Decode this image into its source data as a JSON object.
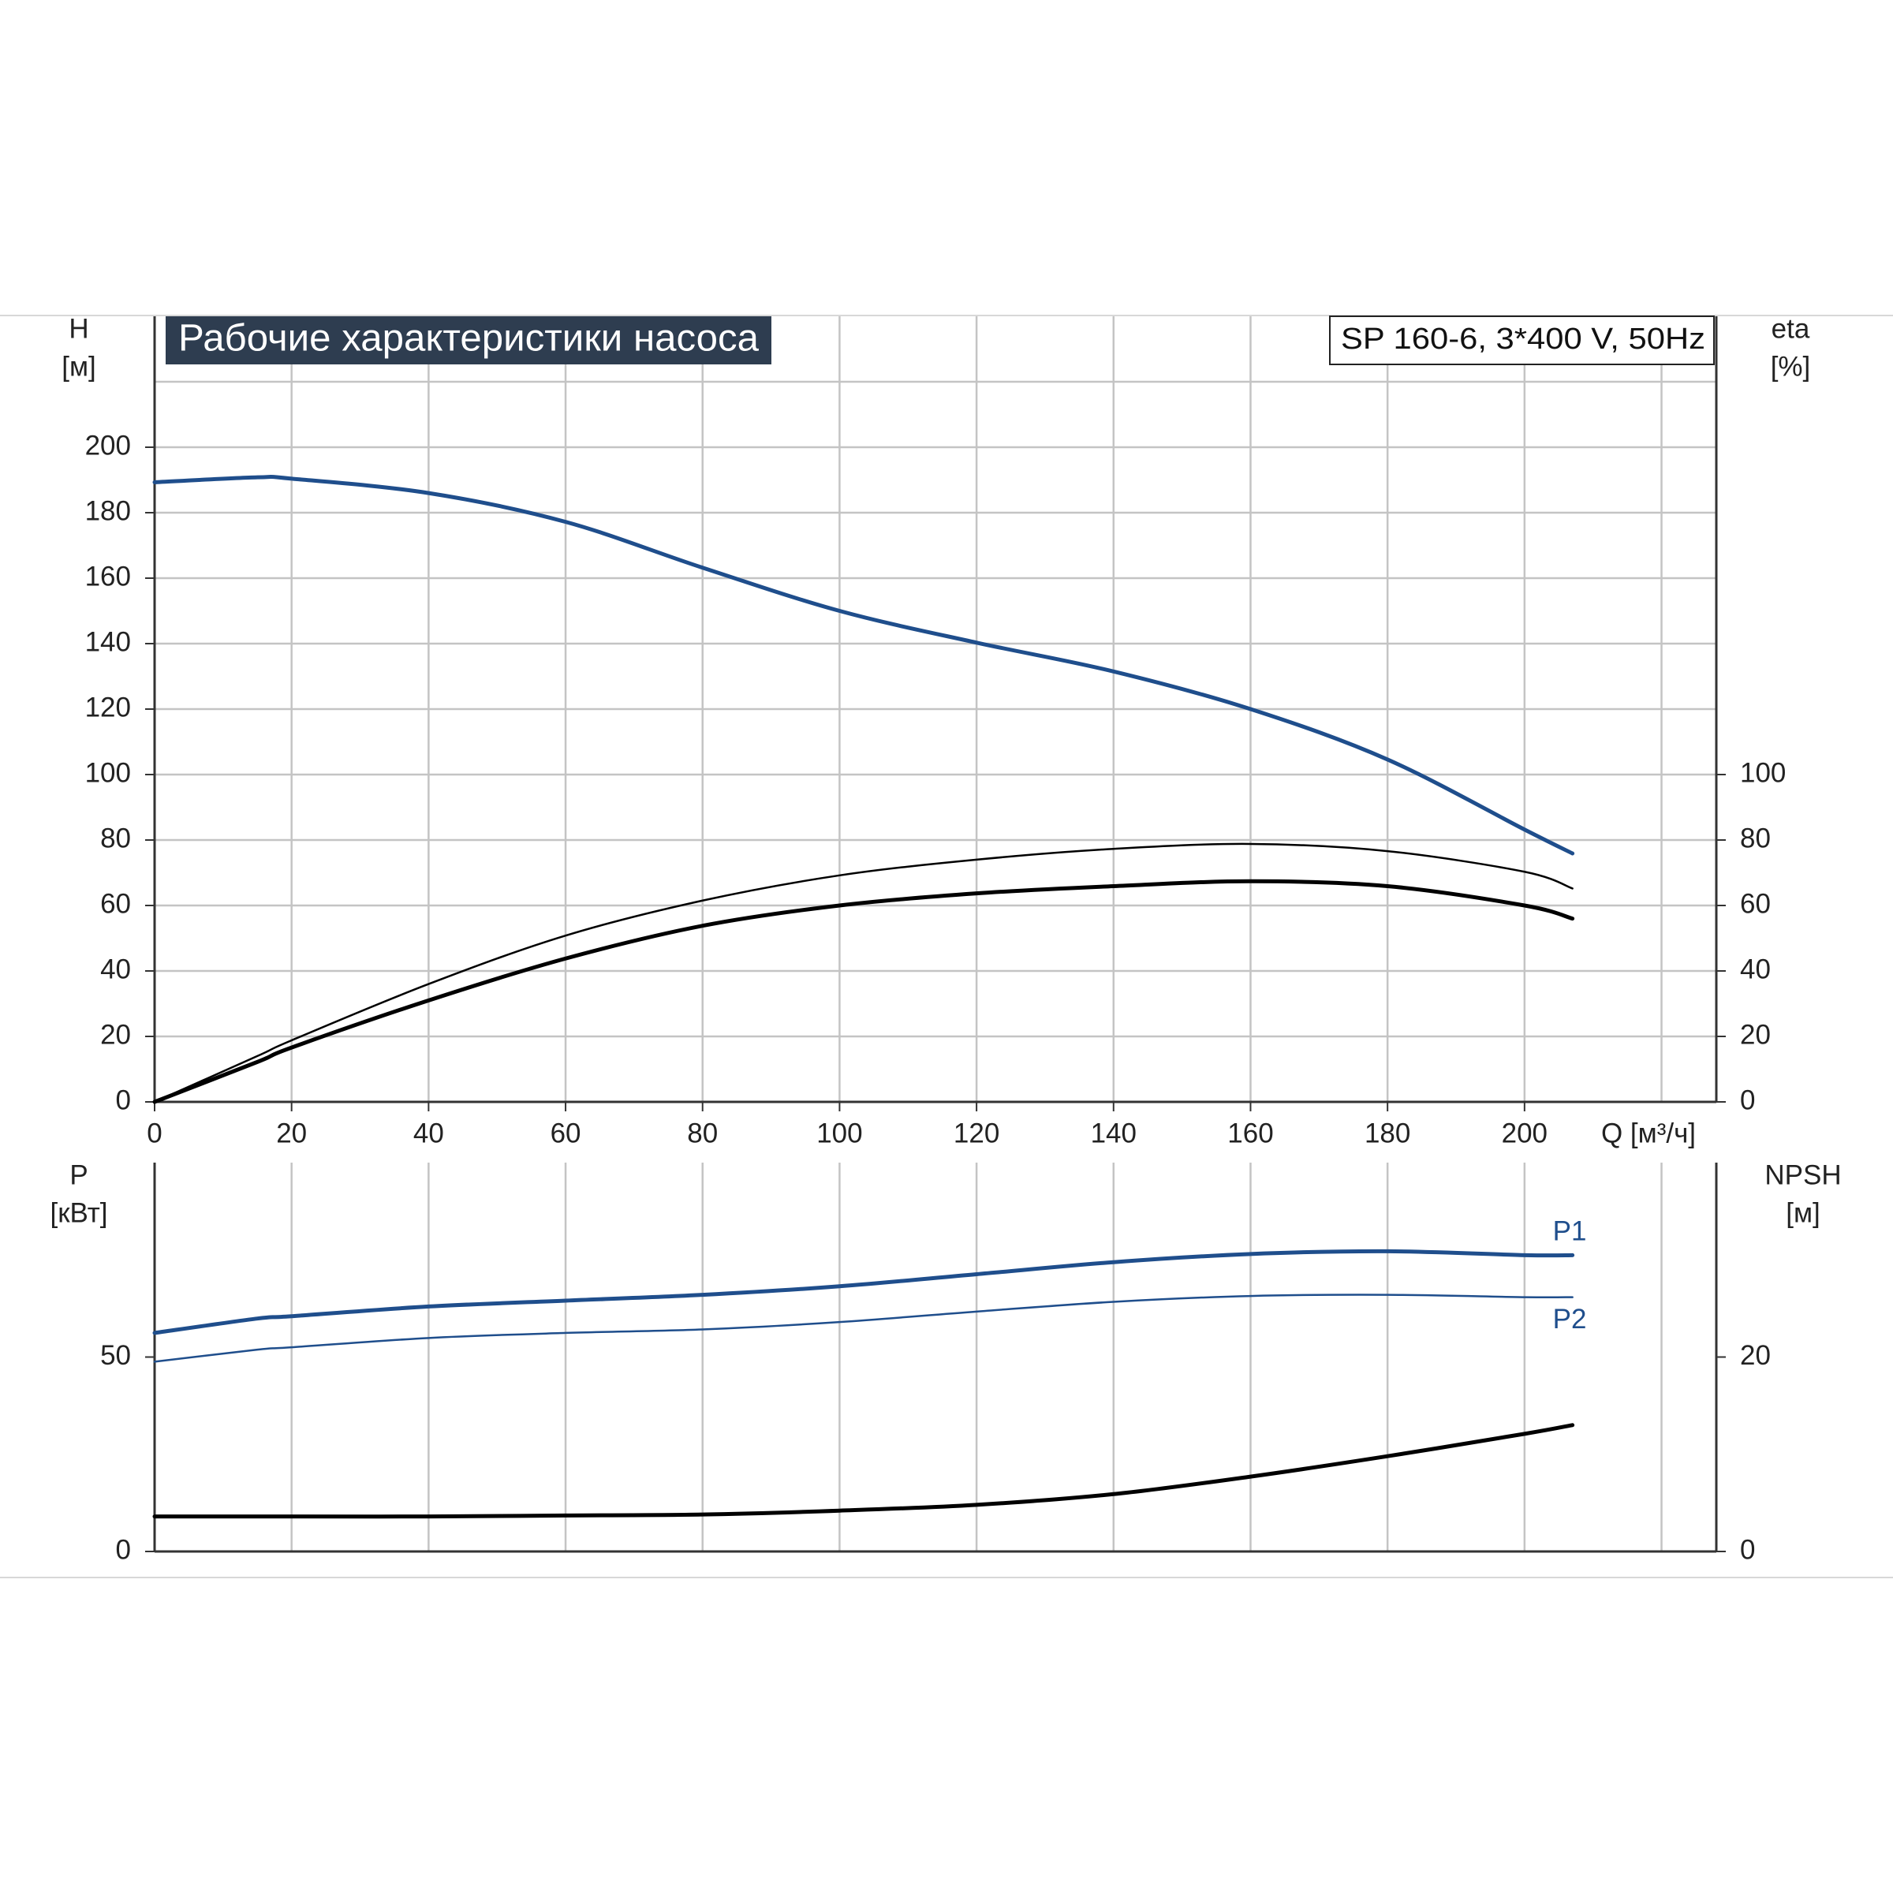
{
  "chart_data": [
    {
      "type": "line",
      "title": "Рабочие характеристики насоса",
      "subtitle": "SP 160-6, 3*400 V, 50Hz",
      "xlabel": "Q [м³/ч]",
      "ylabel": "H",
      "ylabel_unit": "[м]",
      "y2label": "eta",
      "y2label_unit": "[%]",
      "x": [
        0,
        15,
        20,
        40,
        60,
        80,
        100,
        120,
        140,
        160,
        180,
        200,
        207
      ],
      "xlim": [
        0,
        228
      ],
      "xticks": [
        0,
        20,
        40,
        60,
        80,
        100,
        120,
        140,
        160,
        180,
        200
      ],
      "xgrid": [
        20,
        40,
        60,
        80,
        100,
        120,
        140,
        160,
        180,
        200,
        220
      ],
      "ylim": [
        0,
        240
      ],
      "yticks": [
        0,
        20,
        40,
        60,
        80,
        100,
        120,
        140,
        160,
        180,
        200
      ],
      "ygrid": [
        20,
        40,
        60,
        80,
        100,
        120,
        140,
        160,
        180,
        200,
        220
      ],
      "y2lim": [
        0,
        240
      ],
      "y2ticks": [
        0,
        20,
        40,
        60,
        80,
        100
      ],
      "grid": true,
      "series": [
        {
          "color": "#1f4e8c",
          "style": "thick",
          "values": [
            189.3,
            190.8,
            190.4,
            186,
            177.2,
            163.2,
            150,
            140.3,
            131.5,
            120,
            104.6,
            83.2,
            75.9
          ]
        },
        {
          "color": "#000000",
          "style": "thin",
          "axis": "y2",
          "values": [
            0,
            14,
            18.8,
            36,
            50.8,
            61.5,
            69.2,
            74,
            77.3,
            78.8,
            76.6,
            70.3,
            65.2
          ]
        },
        {
          "color": "#000000",
          "style": "thick",
          "axis": "y2",
          "values": [
            0,
            12.2,
            16.6,
            31,
            43.8,
            53.8,
            60,
            63.7,
            65.9,
            67.4,
            65.9,
            60,
            56
          ]
        }
      ]
    },
    {
      "type": "line",
      "ylabel": "P",
      "ylabel_unit": "[кВт]",
      "y2label": "NPSH",
      "y2label_unit": "[м]",
      "x": [
        0,
        15,
        20,
        40,
        60,
        80,
        100,
        120,
        140,
        160,
        180,
        200,
        207
      ],
      "xlim": [
        0,
        228
      ],
      "xgrid": [
        20,
        40,
        60,
        80,
        100,
        120,
        140,
        160,
        180,
        200,
        220
      ],
      "ylim": [
        0,
        100
      ],
      "yticks": [
        0,
        50
      ],
      "y2lim": [
        0,
        40
      ],
      "y2ticks": [
        0,
        20
      ],
      "grid": true,
      "series": [
        {
          "name": "P1",
          "color": "#1f4e8c",
          "style": "thick",
          "values": [
            56.2,
            59.9,
            60.5,
            63,
            64.5,
            66,
            68.2,
            71.3,
            74.4,
            76.5,
            77.2,
            76.2,
            76.2
          ]
        },
        {
          "name": "P2",
          "color": "#1f4e8c",
          "style": "thin",
          "values": [
            48.8,
            51.9,
            52.5,
            54.9,
            56.2,
            57.1,
            59,
            61.7,
            64.2,
            65.7,
            66,
            65.4,
            65.4
          ]
        },
        {
          "color": "#000000",
          "style": "thick",
          "axis": "y2",
          "values": [
            3.6,
            3.6,
            3.6,
            3.6,
            3.7,
            3.8,
            4.2,
            4.8,
            5.9,
            7.7,
            9.8,
            12.1,
            13.0
          ]
        }
      ]
    }
  ]
}
